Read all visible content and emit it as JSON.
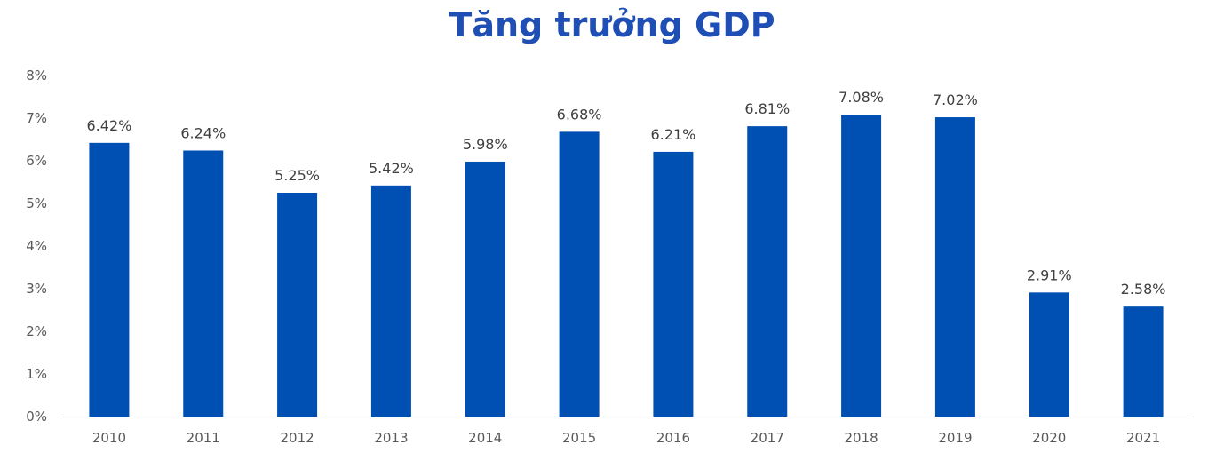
{
  "chart_data": {
    "type": "bar",
    "title": "Tăng trưởng GDP",
    "xlabel": "",
    "ylabel": "",
    "categories": [
      "2010",
      "2011",
      "2012",
      "2013",
      "2014",
      "2015",
      "2016",
      "2017",
      "2018",
      "2019",
      "2020",
      "2021"
    ],
    "values": [
      6.42,
      6.24,
      5.25,
      5.42,
      5.98,
      6.68,
      6.21,
      6.81,
      7.08,
      7.02,
      2.91,
      2.58
    ],
    "data_labels": [
      "6.42%",
      "6.24%",
      "5.25%",
      "5.42%",
      "5.98%",
      "6.68%",
      "6.21%",
      "6.81%",
      "7.08%",
      "7.02%",
      "2.91%",
      "2.58%"
    ],
    "ylim": [
      0,
      8
    ],
    "yticks": [
      0,
      1,
      2,
      3,
      4,
      5,
      6,
      7,
      8
    ],
    "ytick_labels": [
      "0%",
      "1%",
      "2%",
      "3%",
      "4%",
      "5%",
      "6%",
      "7%",
      "8%"
    ],
    "grid": false,
    "legend": "none",
    "colors": {
      "bar": "#0050B3",
      "title": "#1F4FB5",
      "axis": "#D9D9D9"
    }
  }
}
